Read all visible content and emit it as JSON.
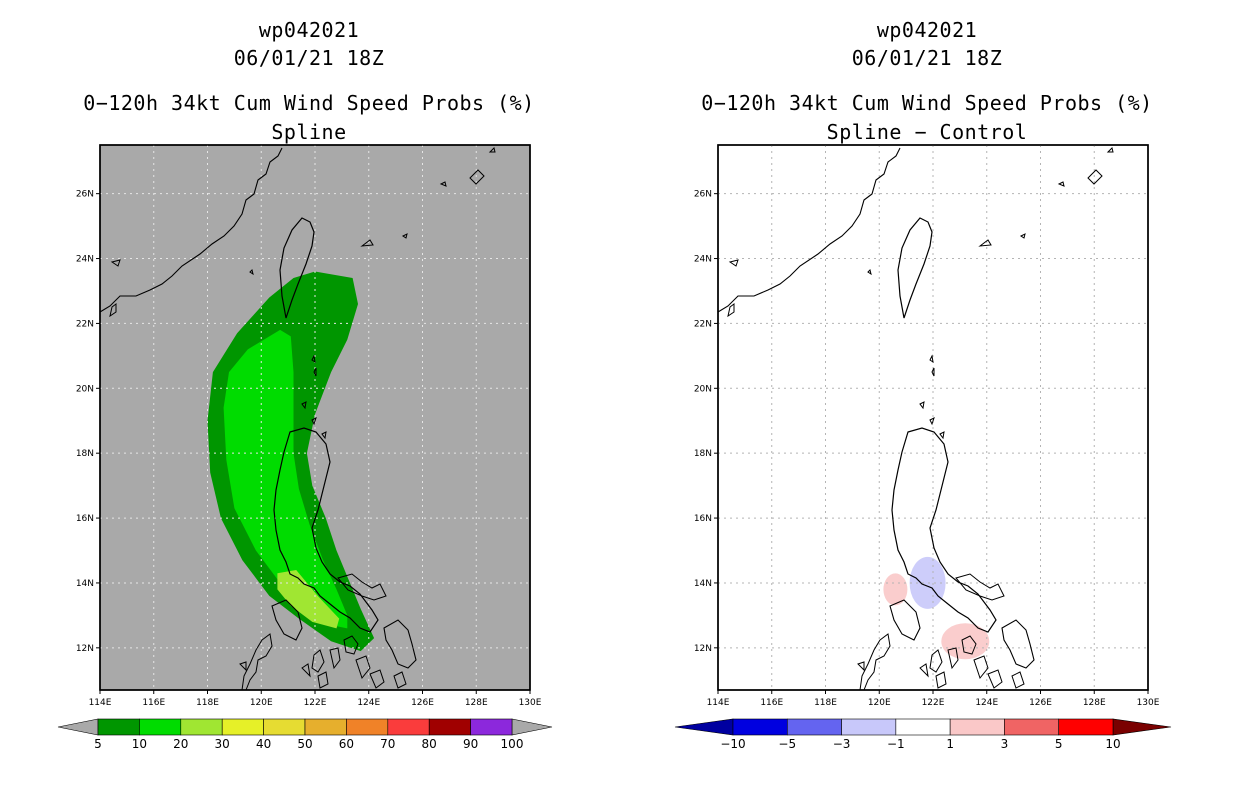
{
  "panels": [
    {
      "id": "spline",
      "storm_id": "wp042021",
      "datetime": "06/01/21 18Z",
      "title": "0−120h 34kt Cum Wind Speed Probs (%)",
      "subtitle": "Spline",
      "background": "#a9a9a9",
      "colorbar": {
        "labels": [
          "5",
          "10",
          "20",
          "30",
          "40",
          "50",
          "60",
          "70",
          "80",
          "90",
          "100"
        ],
        "colors": [
          "#009600",
          "#00dc00",
          "#a0e632",
          "#e6f028",
          "#e6dc32",
          "#e6af2d",
          "#f08228",
          "#fa3c3c",
          "#a00000",
          "#8c28dc"
        ],
        "end_color": "#a9a9a9"
      }
    },
    {
      "id": "spline-control",
      "storm_id": "wp042021",
      "datetime": "06/01/21 18Z",
      "title": "0−120h 34kt Cum Wind Speed Probs (%)",
      "subtitle": "Spline − Control",
      "background": "#ffffff",
      "colorbar": {
        "labels": [
          "−10",
          "−5",
          "−3",
          "−1",
          "1",
          "3",
          "5",
          "10"
        ],
        "colors": [
          "#0000e0",
          "#6464f0",
          "#c8c8fa",
          "#ffffff",
          "#fac8c8",
          "#f06464",
          "#ff0000"
        ],
        "low_color": "#0000a0",
        "high_color": "#7a0000"
      }
    }
  ],
  "chart_data": {
    "type": "heatmap",
    "storm": "wp042021",
    "valid_time": "06/01/21 18Z",
    "variable": "0-120h 34kt cumulative wind speed probability (%)",
    "x_ticks": [
      "114E",
      "116E",
      "118E",
      "120E",
      "122E",
      "124E",
      "126E",
      "128E",
      "130E"
    ],
    "y_ticks": [
      "12N",
      "14N",
      "16N",
      "18N",
      "20N",
      "22N",
      "24N",
      "26N"
    ],
    "x_range": [
      114,
      130
    ],
    "y_range": [
      10.7,
      27.5
    ],
    "spline_regions": [
      {
        "level": "5-10",
        "color": "#009600",
        "outline": [
          [
            122.0,
            23.6
          ],
          [
            123.4,
            23.4
          ],
          [
            123.6,
            22.6
          ],
          [
            123.2,
            21.5
          ],
          [
            122.6,
            20.5
          ],
          [
            122.0,
            19.2
          ],
          [
            121.7,
            18.0
          ],
          [
            121.9,
            17.0
          ],
          [
            122.4,
            16.0
          ],
          [
            122.8,
            15.0
          ],
          [
            123.3,
            14.0
          ],
          [
            123.7,
            13.2
          ],
          [
            124.2,
            12.3
          ],
          [
            123.7,
            11.9
          ],
          [
            122.6,
            12.2
          ],
          [
            121.4,
            12.9
          ],
          [
            120.3,
            13.6
          ],
          [
            119.3,
            14.7
          ],
          [
            118.5,
            16.0
          ],
          [
            118.1,
            17.4
          ],
          [
            118.0,
            19.0
          ],
          [
            118.2,
            20.5
          ],
          [
            119.1,
            21.7
          ],
          [
            120.3,
            22.8
          ],
          [
            121.2,
            23.4
          ]
        ]
      },
      {
        "level": "10-20",
        "color": "#00dc00",
        "outline": [
          [
            120.7,
            21.8
          ],
          [
            121.1,
            21.6
          ],
          [
            121.2,
            20.5
          ],
          [
            121.2,
            19.2
          ],
          [
            121.2,
            18.0
          ],
          [
            121.4,
            16.9
          ],
          [
            121.8,
            15.8
          ],
          [
            122.3,
            14.7
          ],
          [
            122.8,
            13.8
          ],
          [
            123.2,
            13.0
          ],
          [
            123.2,
            12.6
          ],
          [
            122.6,
            12.7
          ],
          [
            121.6,
            13.3
          ],
          [
            120.7,
            14.0
          ],
          [
            119.8,
            15.0
          ],
          [
            119.0,
            16.3
          ],
          [
            118.7,
            17.8
          ],
          [
            118.6,
            19.4
          ],
          [
            118.8,
            20.5
          ],
          [
            119.5,
            21.2
          ]
        ]
      },
      {
        "level": "20-30",
        "color": "#a0e632",
        "outline": [
          [
            120.6,
            14.3
          ],
          [
            121.3,
            14.4
          ],
          [
            122.1,
            13.6
          ],
          [
            122.9,
            12.9
          ],
          [
            122.8,
            12.6
          ],
          [
            121.9,
            12.8
          ],
          [
            121.1,
            13.3
          ],
          [
            120.6,
            13.8
          ]
        ]
      }
    ],
    "difference_regions": [
      {
        "value": "-1 to -3",
        "color": "#c8c8fa",
        "center": [
          121.8,
          14.0
        ]
      },
      {
        "value": "1 to 3",
        "color": "#fac8c8",
        "center": [
          120.6,
          13.8
        ]
      },
      {
        "value": "1 to 3",
        "color": "#fac8c8",
        "center": [
          123.2,
          12.2
        ]
      }
    ]
  }
}
